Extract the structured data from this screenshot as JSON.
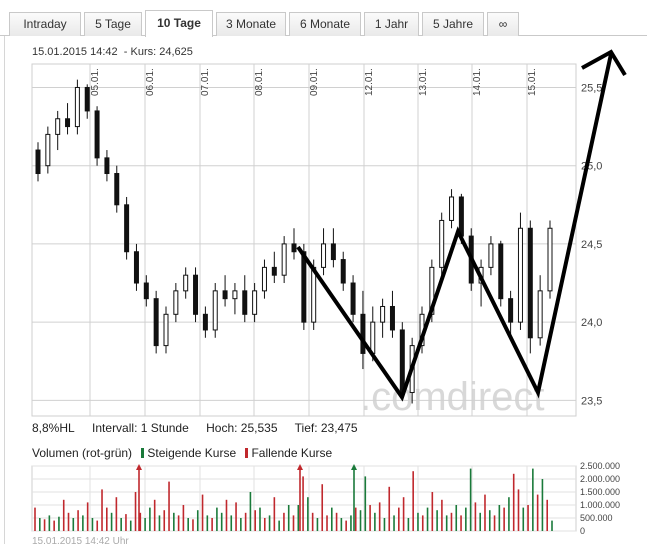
{
  "tabs": [
    {
      "label": "Intraday",
      "active": false
    },
    {
      "label": "5 Tage",
      "active": false
    },
    {
      "label": "10 Tage",
      "active": true
    },
    {
      "label": "3 Monate",
      "active": false
    },
    {
      "label": "6 Monate",
      "active": false
    },
    {
      "label": "1 Jahr",
      "active": false
    },
    {
      "label": "5 Jahre",
      "active": false
    },
    {
      "label": "∞",
      "active": false
    }
  ],
  "header": {
    "datetime": "15.01.2015  14:42",
    "kurs": "- Kurs: 24,625"
  },
  "watermark": ".comdirect",
  "stats": {
    "hl": "8,8%HL",
    "interval": "Intervall: 1 Stunde",
    "hoch": "Hoch:  25,535",
    "tief": "Tief:  23,475"
  },
  "volume_legend": {
    "title": "Volumen (rot-grün)",
    "rising": "Steigende Kurse",
    "falling": "Fallende Kurse",
    "rising_color": "#1a7a3a",
    "falling_color": "#c0282d"
  },
  "footer": "15.01.2015 14:42 Uhr",
  "colors": {
    "candle": "#111111",
    "grid": "#d0d0d0",
    "overlay": "#000000"
  },
  "chart_data": [
    {
      "type": "candlestick",
      "interval": "1 Stunde",
      "x_ticks": [
        "05.01.",
        "06.01.",
        "07.01.",
        "08.01.",
        "09.01.",
        "12.01.",
        "13.01.",
        "14.01.",
        "15.01."
      ],
      "y_ticks": [
        "25,5",
        "25,0",
        "24,5",
        "24,0",
        "23,5"
      ],
      "ylim": [
        23.4,
        25.65
      ],
      "grid": true,
      "high": 25.535,
      "low": 23.475,
      "last": 24.625,
      "candles": [
        [
          25.1,
          25.15,
          24.9,
          24.95
        ],
        [
          25.0,
          25.25,
          24.95,
          25.2
        ],
        [
          25.2,
          25.35,
          25.1,
          25.3
        ],
        [
          25.3,
          25.4,
          25.2,
          25.25
        ],
        [
          25.25,
          25.55,
          25.2,
          25.5
        ],
        [
          25.5,
          25.52,
          25.3,
          25.35
        ],
        [
          25.35,
          25.38,
          25.0,
          25.05
        ],
        [
          25.05,
          25.1,
          24.9,
          24.95
        ],
        [
          24.95,
          25.0,
          24.7,
          24.75
        ],
        [
          24.75,
          24.8,
          24.4,
          24.45
        ],
        [
          24.45,
          24.5,
          24.2,
          24.25
        ],
        [
          24.25,
          24.3,
          24.1,
          24.15
        ],
        [
          24.15,
          24.2,
          23.8,
          23.85
        ],
        [
          23.85,
          24.1,
          23.8,
          24.05
        ],
        [
          24.05,
          24.25,
          24.0,
          24.2
        ],
        [
          24.2,
          24.35,
          24.15,
          24.3
        ],
        [
          24.3,
          24.35,
          24.0,
          24.05
        ],
        [
          24.05,
          24.1,
          23.9,
          23.95
        ],
        [
          23.95,
          24.25,
          23.9,
          24.2
        ],
        [
          24.2,
          24.3,
          24.1,
          24.15
        ],
        [
          24.15,
          24.25,
          24.05,
          24.2
        ],
        [
          24.2,
          24.3,
          24.0,
          24.05
        ],
        [
          24.05,
          24.25,
          24.0,
          24.2
        ],
        [
          24.2,
          24.4,
          24.15,
          24.35
        ],
        [
          24.35,
          24.45,
          24.25,
          24.3
        ],
        [
          24.3,
          24.55,
          24.25,
          24.5
        ],
        [
          24.5,
          24.6,
          24.4,
          24.45
        ],
        [
          24.45,
          24.5,
          23.95,
          24.0
        ],
        [
          24.0,
          24.4,
          23.95,
          24.35
        ],
        [
          24.35,
          24.6,
          24.3,
          24.5
        ],
        [
          24.5,
          24.6,
          24.35,
          24.4
        ],
        [
          24.4,
          24.45,
          24.2,
          24.25
        ],
        [
          24.25,
          24.3,
          24.0,
          24.05
        ],
        [
          24.05,
          24.2,
          23.7,
          23.8
        ],
        [
          23.8,
          24.1,
          23.75,
          24.0
        ],
        [
          24.0,
          24.15,
          23.9,
          24.1
        ],
        [
          24.1,
          24.2,
          23.9,
          23.95
        ],
        [
          23.95,
          24.0,
          23.5,
          23.55
        ],
        [
          23.55,
          23.9,
          23.48,
          23.85
        ],
        [
          23.85,
          24.1,
          23.8,
          24.05
        ],
        [
          24.05,
          24.4,
          24.0,
          24.35
        ],
        [
          24.35,
          24.7,
          24.3,
          24.65
        ],
        [
          24.65,
          24.85,
          24.6,
          24.8
        ],
        [
          24.8,
          24.82,
          24.5,
          24.55
        ],
        [
          24.55,
          24.6,
          24.2,
          24.25
        ],
        [
          24.25,
          24.4,
          24.1,
          24.35
        ],
        [
          24.35,
          24.55,
          24.3,
          24.5
        ],
        [
          24.5,
          24.52,
          24.1,
          24.15
        ],
        [
          24.15,
          24.2,
          23.9,
          24.0
        ],
        [
          24.0,
          24.7,
          23.95,
          24.6
        ],
        [
          24.6,
          24.65,
          23.8,
          23.9
        ],
        [
          23.9,
          24.3,
          23.85,
          24.2
        ],
        [
          24.2,
          24.65,
          24.15,
          24.6
        ]
      ]
    },
    {
      "type": "bar",
      "title": "Volumen (rot-grün)",
      "y_ticks": [
        "2.500.000",
        "2.000.000",
        "1.500.000",
        "1.000.000",
        "500.000",
        "0"
      ],
      "ylim": [
        0,
        2500000
      ],
      "values": [
        900000,
        500000,
        450000,
        600000,
        400000,
        550000,
        1200000,
        700000,
        500000,
        800000,
        600000,
        1100000,
        500000,
        400000,
        1600000,
        900000,
        700000,
        1300000,
        500000,
        650000,
        400000,
        1500000,
        700000,
        500000,
        900000,
        1200000,
        600000,
        800000,
        1900000,
        700000,
        600000,
        1000000,
        500000,
        450000,
        800000,
        1400000,
        600000,
        500000,
        900000,
        700000,
        1200000,
        600000,
        1100000,
        500000,
        700000,
        1500000,
        800000,
        900000,
        500000,
        600000,
        1300000,
        400000,
        700000,
        1000000,
        600000,
        1000000,
        2100000,
        1300000,
        700000,
        500000,
        1800000,
        600000,
        900000,
        700000,
        500000,
        400000,
        600000,
        900000,
        800000,
        2100000,
        1000000,
        700000,
        1100000,
        500000,
        1700000,
        600000,
        900000,
        1300000,
        500000,
        2300000,
        700000,
        600000,
        900000,
        1500000,
        800000,
        1200000,
        600000,
        700000,
        1000000,
        600000,
        900000,
        2400000,
        1100000,
        700000,
        1400000,
        800000,
        600000,
        1000000,
        900000,
        1300000,
        2200000,
        1600000,
        900000,
        1000000,
        2400000,
        1400000,
        2000000,
        1200000,
        400000
      ],
      "colors": [
        "#c0282d",
        "#1a7a3a",
        "#c0282d",
        "#1a7a3a",
        "#c0282d",
        "#1a7a3a",
        "#c0282d",
        "#c0282d",
        "#1a7a3a",
        "#c0282d",
        "#1a7a3a",
        "#c0282d",
        "#1a7a3a",
        "#c0282d",
        "#c0282d",
        "#c0282d",
        "#1a7a3a",
        "#c0282d",
        "#1a7a3a",
        "#c0282d",
        "#1a7a3a",
        "#c0282d",
        "#c0282d",
        "#1a7a3a",
        "#1a7a3a",
        "#c0282d",
        "#1a7a3a",
        "#c0282d",
        "#c0282d",
        "#1a7a3a",
        "#c0282d",
        "#c0282d",
        "#1a7a3a",
        "#c0282d",
        "#1a7a3a",
        "#c0282d",
        "#1a7a3a",
        "#c0282d",
        "#1a7a3a",
        "#1a7a3a",
        "#c0282d",
        "#1a7a3a",
        "#c0282d",
        "#1a7a3a",
        "#c0282d",
        "#1a7a3a",
        "#c0282d",
        "#1a7a3a",
        "#c0282d",
        "#1a7a3a",
        "#c0282d",
        "#1a7a3a",
        "#c0282d",
        "#1a7a3a",
        "#c0282d",
        "#1a7a3a",
        "#c0282d",
        "#1a7a3a",
        "#c0282d",
        "#1a7a3a",
        "#c0282d",
        "#c0282d",
        "#1a7a3a",
        "#c0282d",
        "#1a7a3a",
        "#c0282d",
        "#1a7a3a",
        "#c0282d",
        "#1a7a3a",
        "#1a7a3a",
        "#c0282d",
        "#1a7a3a",
        "#c0282d",
        "#1a7a3a",
        "#c0282d",
        "#1a7a3a",
        "#c0282d",
        "#c0282d",
        "#1a7a3a",
        "#c0282d",
        "#1a7a3a",
        "#c0282d",
        "#1a7a3a",
        "#c0282d",
        "#1a7a3a",
        "#c0282d",
        "#1a7a3a",
        "#c0282d",
        "#1a7a3a",
        "#c0282d",
        "#1a7a3a",
        "#1a7a3a",
        "#c0282d",
        "#1a7a3a",
        "#c0282d",
        "#1a7a3a",
        "#c0282d",
        "#1a7a3a",
        "#c0282d",
        "#1a7a3a",
        "#c0282d",
        "#c0282d",
        "#1a7a3a",
        "#c0282d",
        "#1a7a3a",
        "#c0282d",
        "#1a7a3a",
        "#c0282d",
        "#1a7a3a"
      ]
    }
  ],
  "overlay_pattern": {
    "description_points": [
      [
        24.48,
        "09.01."
      ],
      [
        23.5,
        "13.01."
      ],
      [
        24.6,
        "14.01."
      ],
      [
        23.55,
        "15.01."
      ],
      [
        25.65,
        "end"
      ]
    ]
  }
}
